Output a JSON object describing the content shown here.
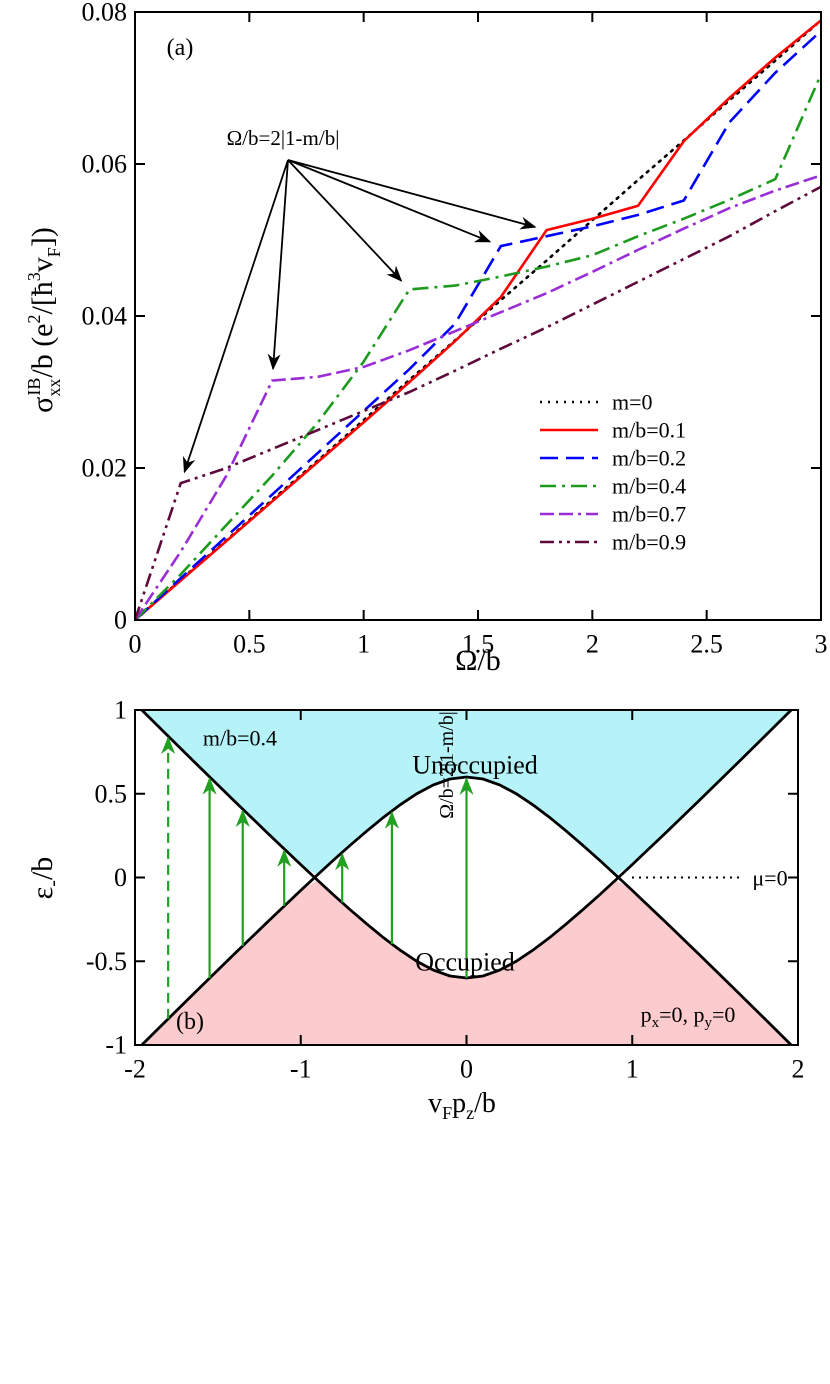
{
  "chart_data": [
    {
      "type": "line",
      "panel_label": "(a)",
      "annotation": "Ω/b=2|1-m/b|",
      "xlabel": "Ω/b",
      "ylabel": [
        "σ",
        "xx",
        "IB",
        "/b (e",
        "2",
        "/[ħ",
        "3",
        "v",
        "F",
        "])"
      ],
      "x": [
        0,
        0.2,
        0.4,
        0.6,
        0.8,
        1,
        1.2,
        1.4,
        1.6,
        1.8,
        2,
        2.2,
        2.4,
        2.6,
        2.8,
        3
      ],
      "series": [
        {
          "name": "m=0",
          "color": "#000000",
          "dash": "dotted",
          "values": [
            0,
            0.0053,
            0.0105,
            0.0158,
            0.021,
            0.0263,
            0.0316,
            0.0368,
            0.0421,
            0.0473,
            0.0526,
            0.0579,
            0.0631,
            0.0684,
            0.0736,
            0.0789
          ]
        },
        {
          "name": "m/b=0.1",
          "color": "#ff0000",
          "dash": "solid",
          "values": [
            0,
            0.0052,
            0.0104,
            0.0156,
            0.0208,
            0.026,
            0.0313,
            0.0367,
            0.0425,
            0.0513,
            0.0528,
            0.0545,
            0.063,
            0.0687,
            0.074,
            0.0789
          ]
        },
        {
          "name": "m/b=0.2",
          "color": "#0000ff",
          "dash": "dashed",
          "values": [
            0,
            0.0055,
            0.011,
            0.0165,
            0.022,
            0.0275,
            0.033,
            0.039,
            0.0492,
            0.0505,
            0.0518,
            0.0533,
            0.0552,
            0.0655,
            0.072,
            0.0775
          ]
        },
        {
          "name": "m/b=0.4",
          "color": "#1e9a1e",
          "dash": "dashdot",
          "values": [
            0,
            0.006,
            0.0125,
            0.019,
            0.026,
            0.034,
            0.0435,
            0.044,
            0.0452,
            0.0465,
            0.048,
            0.0505,
            0.0528,
            0.0553,
            0.058,
            0.0718
          ]
        },
        {
          "name": "m/b=0.7",
          "color": "#9a2ed6",
          "dash": "dashdashdot",
          "values": [
            0,
            0.009,
            0.019,
            0.0315,
            0.032,
            0.0333,
            0.0355,
            0.038,
            0.0405,
            0.043,
            0.0458,
            0.0487,
            0.0515,
            0.0542,
            0.0565,
            0.0585
          ]
        },
        {
          "name": "m/b=0.9",
          "color": "#5e0a3a",
          "dash": "dashdotdot",
          "values": [
            0,
            0.018,
            0.02,
            0.0225,
            0.025,
            0.0275,
            0.03,
            0.0328,
            0.0357,
            0.0385,
            0.0415,
            0.0445,
            0.0475,
            0.0505,
            0.0538,
            0.057
          ]
        }
      ],
      "xlim": [
        0,
        3
      ],
      "ylim": [
        0,
        0.08
      ],
      "xticks": [
        0,
        0.5,
        1,
        1.5,
        2,
        2.5,
        3
      ],
      "yticks": [
        0,
        0.02,
        0.04,
        0.06,
        0.08
      ],
      "legend": "lower right"
    },
    {
      "type": "band",
      "panel_label": "(b)",
      "annotation": "Ω/b=2|1-m/b|",
      "xlabel": [
        "v",
        "F",
        "p",
        "z",
        "/b"
      ],
      "ylabel": [
        "ε",
        "-",
        "/b"
      ],
      "mass_label": "m/b=0.4",
      "upper_label": "Unoccupied",
      "lower_label": "Occupied",
      "momentum_label": [
        "p",
        "x",
        "=0, p",
        "y",
        "=0"
      ],
      "mu_label": "μ=0",
      "mu": 0,
      "x": [
        -2,
        -1.8,
        -1.6,
        -1.4,
        -1.2,
        -1,
        -0.9,
        -0.8,
        -0.7,
        -0.6,
        -0.5,
        -0.4,
        -0.3,
        -0.2,
        -0.1,
        0,
        0.1,
        0.2,
        0.3,
        0.4,
        0.5,
        0.6,
        0.7,
        0.8,
        0.9,
        1,
        1.2,
        1.4,
        1.6,
        1.8,
        2
      ],
      "series": [
        {
          "color": "#000000",
          "values": [
            1.04,
            0.844,
            0.649,
            0.456,
            0.265,
            0.077,
            -0.015,
            -0.106,
            -0.194,
            -0.279,
            -0.36,
            -0.434,
            -0.5,
            -0.553,
            -0.588,
            -0.6,
            -0.588,
            -0.553,
            -0.5,
            -0.434,
            -0.36,
            -0.279,
            -0.194,
            -0.106,
            -0.015,
            0.077,
            0.265,
            0.456,
            0.649,
            0.844,
            1.04
          ]
        },
        {
          "color": "#000000",
          "values": [
            -1.04,
            -0.844,
            -0.649,
            -0.456,
            -0.265,
            -0.077,
            0.015,
            0.106,
            0.194,
            0.279,
            0.36,
            0.434,
            0.5,
            0.553,
            0.588,
            0.6,
            0.588,
            0.553,
            0.5,
            0.434,
            0.36,
            0.279,
            0.194,
            0.106,
            0.015,
            -0.077,
            -0.265,
            -0.456,
            -0.649,
            -0.844,
            -1.04
          ]
        }
      ],
      "fill_above": "#b5f3f9",
      "fill_below": "#fccbcd",
      "transitions": {
        "color": "#22a022",
        "x": [
          -1.8,
          -1.55,
          -1.35,
          -1.1,
          -0.75,
          -0.45,
          0
        ],
        "from": [
          -0.844,
          -0.601,
          -0.408,
          -0.17,
          -0.15,
          -0.398,
          -0.6
        ],
        "to": [
          0.844,
          0.601,
          0.408,
          0.17,
          0.15,
          0.398,
          0.6
        ],
        "dashed": [
          true,
          false,
          false,
          false,
          false,
          false,
          false
        ]
      },
      "xlim": [
        -2,
        2
      ],
      "ylim": [
        -1,
        1
      ],
      "xticks": [
        -2,
        -1,
        0,
        1,
        2
      ],
      "yticks": [
        -1,
        -0.5,
        0,
        0.5,
        1
      ]
    }
  ]
}
